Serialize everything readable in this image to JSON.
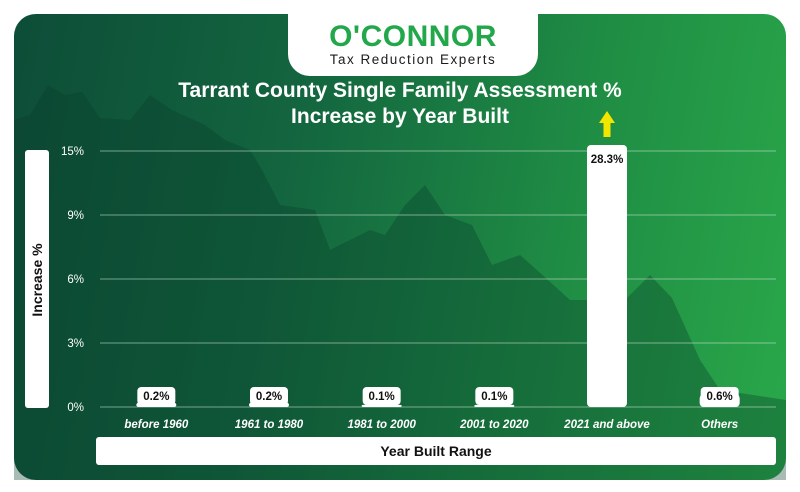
{
  "brand": {
    "name": "O'CONNOR",
    "tagline": "Tax Reduction Experts"
  },
  "colors": {
    "brand_green": "#22a74a",
    "arrow": "#f2e600",
    "grid": "#cfe6d6"
  },
  "chart_data": {
    "type": "bar",
    "title": "Tarrant County Single Family Assessment % Increase by Year Built",
    "title_lines": [
      "Tarrant County Single Family Assessment %",
      "Increase by Year Built"
    ],
    "xlabel": "Year Built Range",
    "ylabel": "Increase %",
    "categories": [
      "before 1960",
      "1961 to 1980",
      "1981 to 2000",
      "2001 to 2020",
      "2021 and above",
      "Others"
    ],
    "values": [
      0.2,
      0.2,
      0.1,
      0.1,
      28.3,
      0.6
    ],
    "data_labels": [
      "0.2%",
      "0.2%",
      "0.1%",
      "0.1%",
      "28.3%",
      "0.6%"
    ],
    "y_ticks": [
      0,
      3,
      6,
      9,
      15
    ],
    "y_tick_labels": [
      "0%",
      "3%",
      "6%",
      "9%",
      "15%"
    ],
    "grid": true,
    "legend": "none",
    "bar_color": "#ffffff",
    "truncated_bar_marker": "up-arrow"
  }
}
